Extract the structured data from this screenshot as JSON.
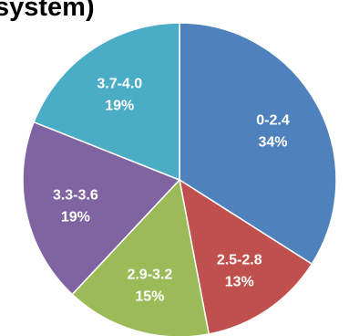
{
  "chart_data": {
    "type": "pie",
    "title": "system)",
    "categories": [
      "0-2.4",
      "2.5-2.8",
      "2.9-3.2",
      "3.3-3.6",
      "3.7-4.0"
    ],
    "values": [
      34,
      13,
      15,
      19,
      19
    ],
    "percent_labels": [
      "34%",
      "13%",
      "15%",
      "19%",
      "19%"
    ],
    "colors": [
      "#4F81BD",
      "#C0504D",
      "#9BBB59",
      "#8064A2",
      "#4BACC6"
    ],
    "start_angle_deg": 0,
    "direction": "clockwise",
    "legend": "none",
    "data_labels": "inside"
  }
}
